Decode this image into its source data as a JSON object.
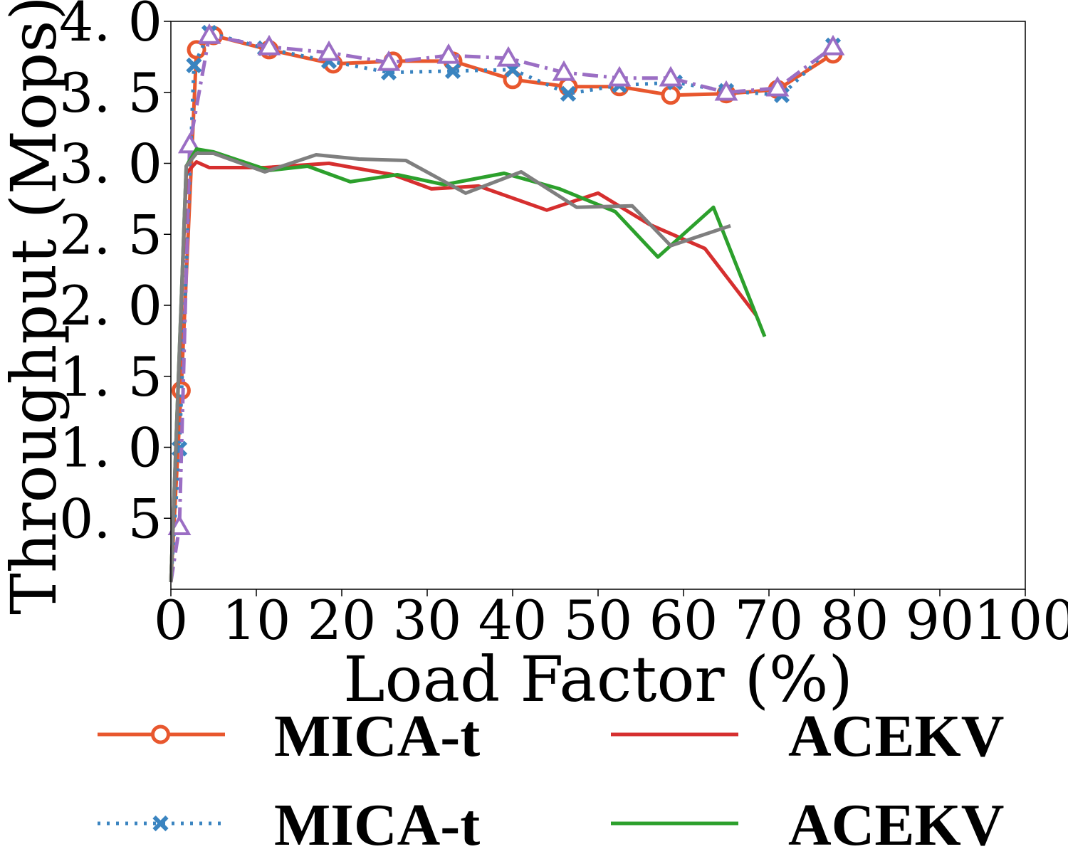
{
  "chart_data": {
    "type": "line",
    "title": "",
    "xlabel": "Load Factor (%)",
    "ylabel": "Throughput (Mops)",
    "xlim": [
      0,
      100
    ],
    "ylim": [
      0.0,
      4.0
    ],
    "xticks": [
      "0",
      "10",
      "20",
      "30",
      "40",
      "50",
      "60",
      "70",
      "80",
      "90",
      "100"
    ],
    "yticks": [
      "0. 5",
      "1. 0",
      "1. 5",
      "2. 0",
      "2. 5",
      "3. 0",
      "3. 5",
      "4. 0"
    ],
    "grid": false,
    "legend_position": "bottom",
    "series": [
      {
        "name": "MICA-t",
        "color": "#e8572e",
        "dash": "solid",
        "marker": "circle",
        "x": [
          0,
          1.2,
          3,
          5,
          11.5,
          19,
          26,
          33,
          40,
          46.5,
          52.5,
          58.5,
          65,
          71,
          77.5
        ],
        "y": [
          0.05,
          1.4,
          3.8,
          3.9,
          3.8,
          3.7,
          3.72,
          3.72,
          3.59,
          3.54,
          3.54,
          3.48,
          3.49,
          3.52,
          3.77
        ]
      },
      {
        "name": "MICA-t",
        "color": "#3a84c0",
        "dash": "dotted",
        "marker": "x",
        "x": [
          0,
          1,
          2.7,
          4.5,
          11,
          18.5,
          25.5,
          33,
          40,
          46.5,
          52.5,
          59,
          65,
          71.5,
          77.5
        ],
        "y": [
          0.05,
          0.99,
          3.69,
          3.92,
          3.81,
          3.72,
          3.64,
          3.65,
          3.66,
          3.49,
          3.55,
          3.57,
          3.51,
          3.48,
          3.83
        ]
      },
      {
        "name": "",
        "color": "#9b6ec4",
        "dash": "dashdot",
        "marker": "triangle",
        "x": [
          0,
          1,
          2.2,
          4.5,
          11.5,
          18.5,
          25.5,
          32.5,
          39.5,
          46,
          52.5,
          58.5,
          65,
          71,
          77.5
        ],
        "y": [
          0.05,
          0.44,
          3.13,
          3.9,
          3.82,
          3.78,
          3.71,
          3.76,
          3.74,
          3.64,
          3.6,
          3.6,
          3.5,
          3.53,
          3.82
        ]
      },
      {
        "name": "ACEKV",
        "color": "#d62f2f",
        "dash": "solid",
        "marker": "none",
        "x": [
          0,
          1.8,
          3,
          4.5,
          11,
          18.5,
          26,
          30.5,
          36,
          44,
          50,
          56,
          62.5,
          68.5
        ],
        "y": [
          0.05,
          2.93,
          3.01,
          2.97,
          2.97,
          3.0,
          2.92,
          2.82,
          2.84,
          2.67,
          2.79,
          2.57,
          2.4,
          1.93
        ]
      },
      {
        "name": "ACEKV",
        "color": "#2ca02c",
        "dash": "solid",
        "marker": "none",
        "x": [
          0,
          1.8,
          3,
          5,
          11.5,
          16,
          21,
          26.5,
          32,
          39,
          45.5,
          52,
          57,
          63.5,
          69.5
        ],
        "y": [
          0.05,
          2.98,
          3.1,
          3.08,
          2.95,
          2.98,
          2.87,
          2.92,
          2.85,
          2.93,
          2.82,
          2.66,
          2.34,
          2.69,
          1.78
        ]
      },
      {
        "name": "",
        "color": "#7f7f7f",
        "dash": "solid",
        "marker": "none",
        "x": [
          0,
          1.8,
          3,
          5,
          11,
          17,
          22,
          27.5,
          34.5,
          41,
          47.5,
          54,
          58.5,
          65.5
        ],
        "y": [
          0.05,
          2.98,
          3.07,
          3.07,
          2.94,
          3.06,
          3.03,
          3.02,
          2.79,
          2.94,
          2.69,
          2.7,
          2.42,
          2.56
        ]
      }
    ]
  }
}
